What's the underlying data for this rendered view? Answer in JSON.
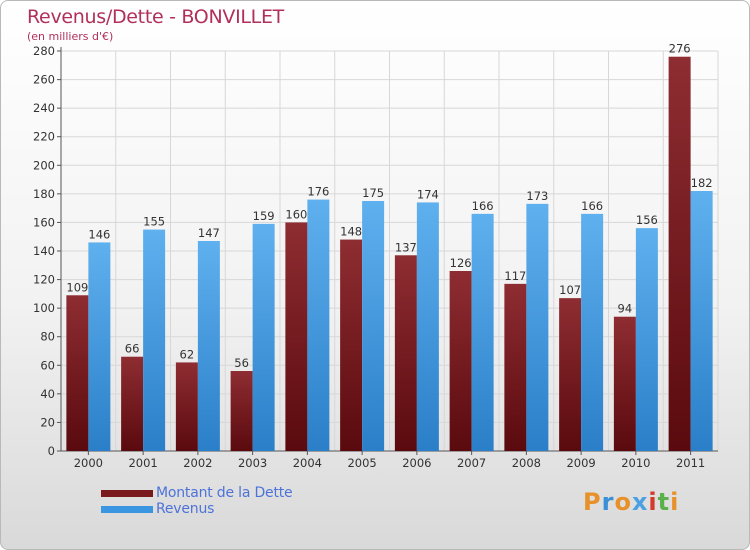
{
  "header": {
    "title": "Revenus/Dette - BONVILLET",
    "subtitle": "(en milliers d'€)"
  },
  "legend": {
    "items": [
      {
        "label": "Montant de la Dette",
        "color": "#7a1a1e"
      },
      {
        "label": "Revenus",
        "color": "#3a96e0"
      }
    ]
  },
  "logo": {
    "text": "Proxiti",
    "colors": [
      "#e8902a",
      "#3a8fd6",
      "#e8902a",
      "#4aa0e0",
      "#d23a2a",
      "#5ab04a",
      "#e8902a"
    ]
  },
  "chart_data": {
    "type": "bar",
    "categories": [
      "2000",
      "2001",
      "2002",
      "2003",
      "2004",
      "2005",
      "2006",
      "2007",
      "2008",
      "2009",
      "2010",
      "2011"
    ],
    "series": [
      {
        "name": "Montant de la Dette",
        "color": "#7a1a1e",
        "values": [
          109,
          66,
          62,
          56,
          160,
          148,
          137,
          126,
          117,
          107,
          94,
          276
        ]
      },
      {
        "name": "Revenus",
        "color": "#3a96e0",
        "values": [
          146,
          155,
          147,
          159,
          176,
          175,
          174,
          166,
          173,
          166,
          156,
          182
        ]
      }
    ],
    "ylim": [
      0,
      280
    ],
    "yticks": [
      0,
      20,
      40,
      60,
      80,
      100,
      120,
      140,
      160,
      180,
      200,
      220,
      240,
      260,
      280
    ],
    "grid": true
  }
}
